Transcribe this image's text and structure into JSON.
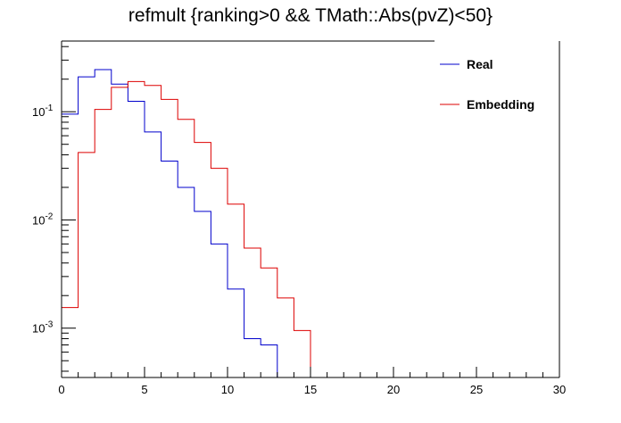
{
  "chart_data": {
    "type": "histogram",
    "title": "refmult {ranking>0 && TMath::Abs(pvZ)<50}",
    "xlabel": "",
    "ylabel": "",
    "xlim": [
      0,
      30
    ],
    "ylim": [
      0.00035,
      0.45
    ],
    "yscale": "log",
    "bin_width": 1,
    "x_ticks": [
      0,
      5,
      10,
      15,
      20,
      25,
      30
    ],
    "y_ticks": [
      {
        "value": 0.001,
        "base": "10",
        "exp": "-3"
      },
      {
        "value": 0.01,
        "base": "10",
        "exp": "-2"
      },
      {
        "value": 0.1,
        "base": "10",
        "exp": "-1"
      }
    ],
    "legend_position": "top-right",
    "series": [
      {
        "name": "Real",
        "color": "#0000cc",
        "values": [
          0.095,
          0.21,
          0.245,
          0.18,
          0.125,
          0.065,
          0.035,
          0.02,
          0.012,
          0.006,
          0.0023,
          0.0008,
          0.0007,
          0,
          0,
          0,
          0,
          0,
          0,
          0,
          0,
          0,
          0,
          0,
          0,
          0,
          0,
          0,
          0,
          0
        ]
      },
      {
        "name": "Embedding",
        "color": "#dd0000",
        "values": [
          0.00155,
          0.042,
          0.105,
          0.168,
          0.19,
          0.175,
          0.13,
          0.085,
          0.052,
          0.03,
          0.014,
          0.0055,
          0.0036,
          0.0019,
          0.00095,
          0,
          0,
          0,
          0,
          0,
          0,
          0,
          0,
          0,
          0,
          0,
          0,
          0,
          0,
          0
        ]
      }
    ]
  }
}
